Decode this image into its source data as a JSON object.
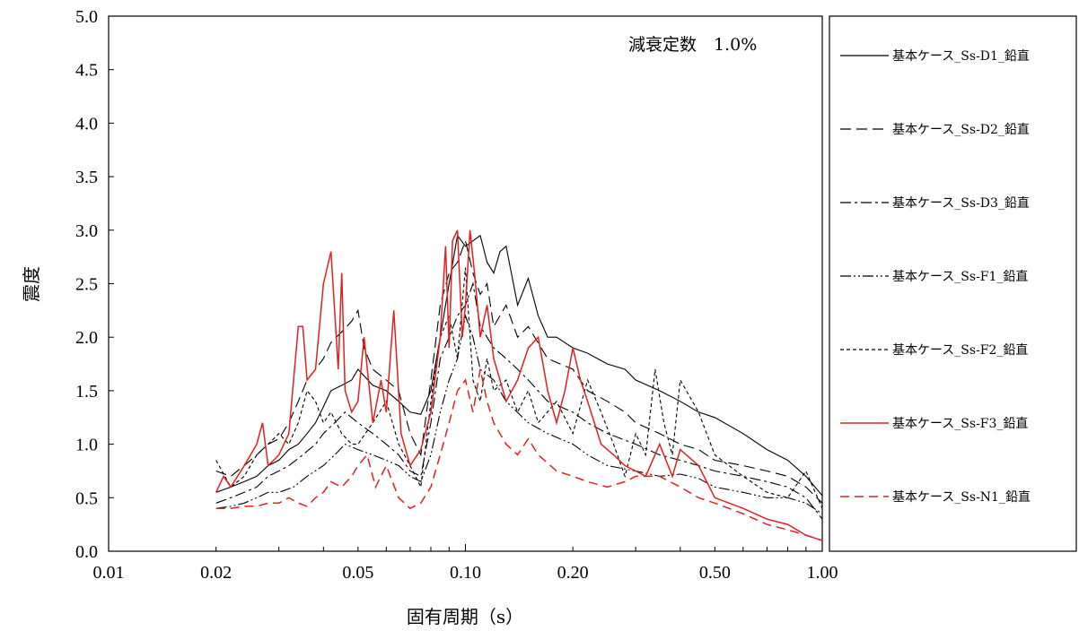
{
  "chart_data": {
    "type": "line",
    "title": "",
    "xlabel": "固有周期（s）",
    "ylabel": "震度",
    "x_scale": "log",
    "xlim": [
      0.01,
      1.0
    ],
    "ylim": [
      0.0,
      5.0
    ],
    "x_ticks": [
      {
        "value": 0.01,
        "label": "0.01"
      },
      {
        "value": 0.02,
        "label": "0.02"
      },
      {
        "value": 0.05,
        "label": "0.05"
      },
      {
        "value": 0.1,
        "label": "0.10"
      },
      {
        "value": 0.2,
        "label": "0.20"
      },
      {
        "value": 0.5,
        "label": "0.50"
      },
      {
        "value": 1.0,
        "label": "1.00"
      }
    ],
    "y_ticks": [
      {
        "value": 0.0,
        "label": "0.0"
      },
      {
        "value": 0.5,
        "label": "0.5"
      },
      {
        "value": 1.0,
        "label": "1.0"
      },
      {
        "value": 1.5,
        "label": "1.5"
      },
      {
        "value": 2.0,
        "label": "2.0"
      },
      {
        "value": 2.5,
        "label": "2.5"
      },
      {
        "value": 3.0,
        "label": "3.0"
      },
      {
        "value": 3.5,
        "label": "3.5"
      },
      {
        "value": 4.0,
        "label": "4.0"
      },
      {
        "value": 4.5,
        "label": "4.5"
      },
      {
        "value": 5.0,
        "label": "5.0"
      }
    ],
    "grid": false,
    "legend_position": "right",
    "annotation": "減衰定数　1.0%",
    "series": [
      {
        "name": "基本ケース_Ss-D1_鉛直",
        "color": "#000000",
        "dash": "solid",
        "x": [
          0.02,
          0.022,
          0.024,
          0.026,
          0.028,
          0.03,
          0.032,
          0.034,
          0.036,
          0.038,
          0.04,
          0.042,
          0.045,
          0.048,
          0.05,
          0.055,
          0.06,
          0.065,
          0.07,
          0.075,
          0.08,
          0.085,
          0.09,
          0.095,
          0.1,
          0.105,
          0.11,
          0.115,
          0.12,
          0.125,
          0.13,
          0.14,
          0.15,
          0.16,
          0.17,
          0.18,
          0.2,
          0.22,
          0.25,
          0.28,
          0.3,
          0.35,
          0.4,
          0.45,
          0.5,
          0.6,
          0.7,
          0.8,
          0.9,
          1.0
        ],
        "y": [
          0.55,
          0.6,
          0.65,
          0.7,
          0.8,
          0.85,
          0.95,
          1.0,
          1.1,
          1.2,
          1.35,
          1.5,
          1.55,
          1.6,
          1.7,
          1.55,
          1.5,
          1.4,
          1.3,
          1.28,
          1.5,
          2.0,
          2.5,
          2.95,
          2.85,
          2.9,
          2.95,
          2.7,
          2.6,
          2.8,
          2.85,
          2.3,
          2.55,
          2.2,
          2.0,
          2.0,
          1.9,
          1.85,
          1.75,
          1.7,
          1.6,
          1.5,
          1.4,
          1.3,
          1.25,
          1.1,
          0.95,
          0.85,
          0.7,
          0.52
        ]
      },
      {
        "name": "基本ケース_Ss-D2_鉛直",
        "color": "#000000",
        "dash": "12,6",
        "x": [
          0.02,
          0.022,
          0.024,
          0.026,
          0.028,
          0.03,
          0.032,
          0.034,
          0.036,
          0.038,
          0.04,
          0.042,
          0.045,
          0.048,
          0.05,
          0.052,
          0.055,
          0.06,
          0.065,
          0.07,
          0.075,
          0.08,
          0.085,
          0.09,
          0.095,
          0.1,
          0.105,
          0.11,
          0.115,
          0.12,
          0.13,
          0.14,
          0.15,
          0.17,
          0.2,
          0.22,
          0.25,
          0.28,
          0.3,
          0.35,
          0.4,
          0.45,
          0.5,
          0.6,
          0.7,
          0.8,
          0.9,
          1.0
        ],
        "y": [
          0.75,
          0.7,
          0.8,
          0.9,
          1.0,
          1.05,
          1.2,
          1.4,
          1.6,
          1.7,
          1.8,
          1.95,
          2.05,
          2.15,
          2.25,
          1.9,
          1.7,
          1.6,
          1.5,
          1.1,
          0.9,
          1.6,
          2.3,
          2.6,
          2.7,
          2.9,
          2.6,
          2.4,
          2.5,
          2.1,
          2.3,
          2.0,
          2.1,
          1.8,
          1.7,
          1.5,
          1.4,
          1.3,
          1.2,
          1.1,
          1.0,
          0.95,
          0.85,
          0.8,
          0.75,
          0.7,
          0.6,
          0.45
        ]
      },
      {
        "name": "基本ケース_Ss-D3_鉛直",
        "color": "#000000",
        "dash": "12,4,3,4",
        "x": [
          0.02,
          0.022,
          0.024,
          0.026,
          0.028,
          0.03,
          0.032,
          0.035,
          0.038,
          0.04,
          0.043,
          0.046,
          0.05,
          0.055,
          0.06,
          0.065,
          0.07,
          0.075,
          0.08,
          0.085,
          0.09,
          0.095,
          0.1,
          0.105,
          0.11,
          0.12,
          0.13,
          0.14,
          0.15,
          0.17,
          0.2,
          0.22,
          0.25,
          0.3,
          0.35,
          0.4,
          0.45,
          0.5,
          0.6,
          0.7,
          0.8,
          0.9,
          1.0
        ],
        "y": [
          0.45,
          0.5,
          0.55,
          0.6,
          0.7,
          0.75,
          0.8,
          0.9,
          1.0,
          1.1,
          1.2,
          1.3,
          1.2,
          1.1,
          1.0,
          0.9,
          0.75,
          0.7,
          1.2,
          1.8,
          2.0,
          2.2,
          2.3,
          2.5,
          2.1,
          1.9,
          1.8,
          1.7,
          1.6,
          1.4,
          1.3,
          1.2,
          1.1,
          1.0,
          0.9,
          0.85,
          0.8,
          0.75,
          0.7,
          0.65,
          0.6,
          0.5,
          0.3
        ]
      },
      {
        "name": "基本ケース_Ss-F1_鉛直",
        "color": "#000000",
        "dash": "12,3,2,3,2,3",
        "x": [
          0.02,
          0.022,
          0.024,
          0.026,
          0.028,
          0.03,
          0.033,
          0.036,
          0.04,
          0.043,
          0.046,
          0.05,
          0.055,
          0.06,
          0.065,
          0.07,
          0.075,
          0.08,
          0.085,
          0.09,
          0.095,
          0.1,
          0.105,
          0.11,
          0.12,
          0.13,
          0.15,
          0.17,
          0.2,
          0.22,
          0.25,
          0.3,
          0.35,
          0.4,
          0.45,
          0.5,
          0.6,
          0.7,
          0.8,
          0.9,
          1.0
        ],
        "y": [
          0.4,
          0.42,
          0.45,
          0.5,
          0.55,
          0.55,
          0.6,
          0.7,
          0.8,
          0.9,
          1.0,
          0.95,
          0.9,
          0.85,
          0.8,
          0.7,
          0.65,
          0.9,
          1.3,
          1.6,
          1.8,
          2.2,
          2.0,
          1.7,
          1.6,
          1.4,
          1.2,
          1.1,
          1.0,
          0.9,
          0.8,
          0.75,
          0.7,
          0.72,
          0.68,
          0.6,
          0.55,
          0.5,
          0.5,
          0.45,
          0.35
        ]
      },
      {
        "name": "基本ケース_Ss-F2_鉛直",
        "color": "#000000",
        "dash": "4,3",
        "x": [
          0.02,
          0.022,
          0.024,
          0.026,
          0.028,
          0.03,
          0.032,
          0.034,
          0.036,
          0.038,
          0.04,
          0.042,
          0.045,
          0.048,
          0.05,
          0.055,
          0.06,
          0.065,
          0.07,
          0.075,
          0.08,
          0.085,
          0.09,
          0.095,
          0.1,
          0.105,
          0.11,
          0.115,
          0.12,
          0.13,
          0.14,
          0.15,
          0.16,
          0.18,
          0.2,
          0.22,
          0.24,
          0.26,
          0.28,
          0.3,
          0.32,
          0.34,
          0.36,
          0.38,
          0.4,
          0.45,
          0.5,
          0.6,
          0.7,
          0.8,
          0.9,
          1.0
        ],
        "y": [
          0.85,
          0.6,
          0.7,
          0.9,
          1.0,
          1.1,
          1.0,
          1.2,
          1.5,
          1.4,
          1.2,
          1.3,
          1.1,
          1.0,
          1.0,
          1.2,
          1.4,
          1.0,
          0.8,
          0.6,
          1.4,
          2.0,
          2.2,
          1.8,
          2.65,
          1.6,
          1.4,
          1.8,
          1.5,
          1.6,
          1.3,
          1.5,
          1.2,
          1.4,
          1.1,
          1.6,
          1.3,
          1.0,
          0.7,
          1.1,
          0.9,
          1.7,
          1.2,
          0.9,
          1.6,
          1.3,
          0.9,
          0.7,
          0.55,
          0.5,
          0.75,
          0.4
        ]
      },
      {
        "name": "基本ケース_Ss-F3_鉛直",
        "color": "#e02020",
        "dash": "solid",
        "x": [
          0.02,
          0.021,
          0.022,
          0.024,
          0.026,
          0.027,
          0.028,
          0.03,
          0.032,
          0.034,
          0.035,
          0.036,
          0.038,
          0.04,
          0.042,
          0.044,
          0.045,
          0.046,
          0.048,
          0.05,
          0.052,
          0.055,
          0.058,
          0.06,
          0.063,
          0.066,
          0.07,
          0.075,
          0.08,
          0.085,
          0.088,
          0.09,
          0.092,
          0.095,
          0.098,
          0.1,
          0.103,
          0.106,
          0.11,
          0.115,
          0.12,
          0.125,
          0.13,
          0.14,
          0.15,
          0.16,
          0.17,
          0.18,
          0.19,
          0.2,
          0.21,
          0.22,
          0.24,
          0.26,
          0.28,
          0.3,
          0.32,
          0.35,
          0.38,
          0.4,
          0.45,
          0.5,
          0.6,
          0.7,
          0.8,
          0.9,
          1.0
        ],
        "y": [
          0.55,
          0.7,
          0.6,
          0.8,
          1.0,
          1.2,
          0.8,
          0.9,
          1.1,
          2.1,
          2.1,
          1.6,
          1.7,
          2.5,
          2.8,
          1.7,
          2.6,
          1.5,
          1.3,
          1.4,
          2.0,
          1.2,
          1.6,
          1.3,
          2.25,
          1.1,
          0.8,
          0.95,
          1.3,
          2.0,
          2.85,
          1.9,
          2.9,
          3.0,
          2.0,
          2.3,
          3.0,
          2.6,
          2.0,
          2.3,
          1.8,
          1.6,
          1.4,
          1.6,
          1.9,
          2.0,
          1.5,
          1.2,
          1.5,
          1.9,
          1.6,
          1.4,
          1.0,
          0.9,
          0.8,
          0.75,
          0.7,
          1.0,
          0.7,
          0.95,
          0.8,
          0.5,
          0.4,
          0.3,
          0.25,
          0.15,
          0.1
        ]
      },
      {
        "name": "基本ケース_Ss-N1_鉛直",
        "color": "#e02020",
        "dash": "10,6",
        "x": [
          0.02,
          0.022,
          0.024,
          0.026,
          0.028,
          0.03,
          0.032,
          0.034,
          0.036,
          0.038,
          0.04,
          0.042,
          0.045,
          0.048,
          0.05,
          0.053,
          0.056,
          0.06,
          0.065,
          0.07,
          0.075,
          0.08,
          0.085,
          0.09,
          0.095,
          0.1,
          0.105,
          0.11,
          0.115,
          0.12,
          0.13,
          0.14,
          0.15,
          0.16,
          0.18,
          0.2,
          0.22,
          0.25,
          0.28,
          0.3,
          0.35,
          0.4,
          0.45,
          0.5,
          0.6,
          0.7,
          0.8,
          0.9,
          1.0
        ],
        "y": [
          0.4,
          0.4,
          0.42,
          0.42,
          0.45,
          0.45,
          0.5,
          0.45,
          0.42,
          0.5,
          0.55,
          0.65,
          0.6,
          0.7,
          0.8,
          0.9,
          0.6,
          0.8,
          0.5,
          0.4,
          0.45,
          0.6,
          0.9,
          1.2,
          1.5,
          1.6,
          1.3,
          1.7,
          1.4,
          1.2,
          1.0,
          0.9,
          1.05,
          0.9,
          0.75,
          0.7,
          0.65,
          0.6,
          0.65,
          0.7,
          0.7,
          0.6,
          0.5,
          0.45,
          0.35,
          0.25,
          0.2,
          0.15,
          0.1
        ]
      }
    ]
  }
}
